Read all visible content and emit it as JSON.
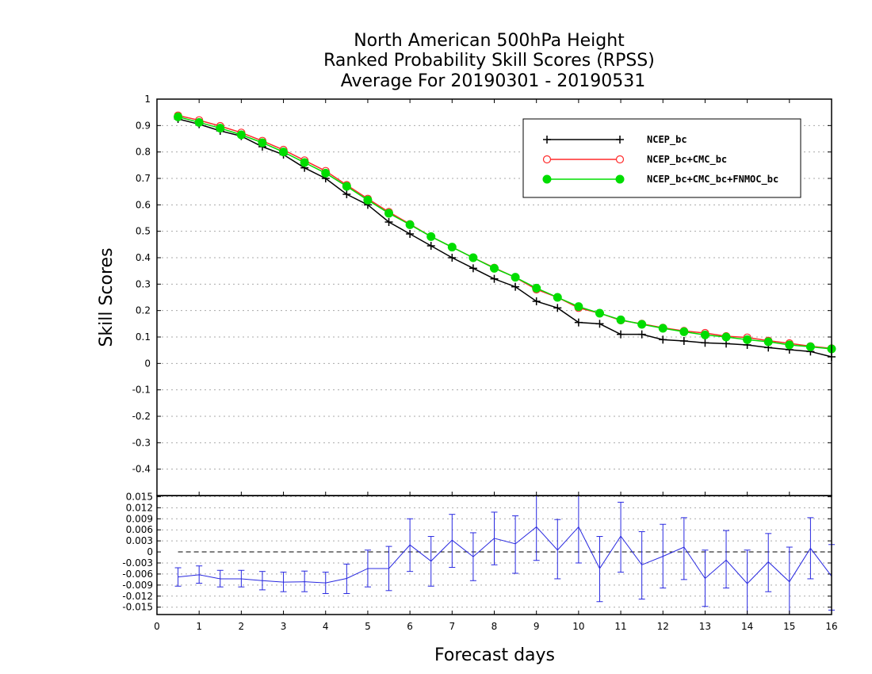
{
  "title_lines": [
    "North American 500hPa Height",
    "Ranked Probability Skill Scores (RPSS)",
    "Average For 20190301 - 20190531"
  ],
  "chart_data": [
    {
      "type": "line",
      "title": "North American 500hPa Height Ranked Probability Skill Scores (RPSS) Average For 20190301 - 20190531",
      "xlabel": "Forecast days",
      "ylabel": "Skill Scores",
      "xlim": [
        0,
        16
      ],
      "ylim": [
        -0.5,
        1
      ],
      "x_ticks": [
        "0",
        "1",
        "2",
        "3",
        "4",
        "5",
        "6",
        "7",
        "8",
        "9",
        "10",
        "11",
        "12",
        "13",
        "14",
        "15",
        "16"
      ],
      "y_ticks": [
        "1",
        "0.9",
        "0.8",
        "0.7",
        "0.6",
        "0.5",
        "0.4",
        "0.3",
        "0.2",
        "0.1",
        "0",
        "-0.1",
        "-0.2",
        "-0.3",
        "-0.4"
      ],
      "grid": true,
      "legend_position": "top-right",
      "x": [
        0.5,
        1,
        1.5,
        2,
        2.5,
        3,
        3.5,
        4,
        4.5,
        5,
        5.5,
        6,
        6.5,
        7,
        7.5,
        8,
        8.5,
        9,
        9.5,
        10,
        10.5,
        11,
        11.5,
        12,
        12.5,
        13,
        13.5,
        14,
        14.5,
        15,
        15.5,
        16
      ],
      "series": [
        {
          "name": "NCEP_bc",
          "color": "#000000",
          "marker": "plus",
          "values": [
            0.925,
            0.905,
            0.88,
            0.86,
            0.82,
            0.79,
            0.74,
            0.7,
            0.64,
            0.6,
            0.535,
            0.49,
            0.445,
            0.4,
            0.36,
            0.32,
            0.29,
            0.235,
            0.21,
            0.155,
            0.15,
            0.11,
            0.11,
            0.09,
            0.085,
            0.078,
            0.075,
            0.07,
            0.06,
            0.052,
            0.045,
            0.025
          ]
        },
        {
          "name": "NCEP_bc+CMC_bc",
          "color": "#ff2a2a",
          "marker": "open-circle",
          "values": [
            0.938,
            0.92,
            0.898,
            0.873,
            0.842,
            0.808,
            0.768,
            0.728,
            0.675,
            0.623,
            0.573,
            0.527,
            0.48,
            0.44,
            0.4,
            0.362,
            0.325,
            0.28,
            0.25,
            0.21,
            0.19,
            0.163,
            0.15,
            0.135,
            0.123,
            0.115,
            0.103,
            0.098,
            0.086,
            0.076,
            0.065,
            0.057
          ]
        },
        {
          "name": "NCEP_bc+CMC_bc+FNMOC_bc",
          "color": "#00dd00",
          "marker": "filled-circle",
          "values": [
            0.933,
            0.912,
            0.89,
            0.865,
            0.835,
            0.8,
            0.76,
            0.72,
            0.67,
            0.618,
            0.568,
            0.525,
            0.48,
            0.44,
            0.4,
            0.36,
            0.326,
            0.285,
            0.25,
            0.215,
            0.19,
            0.165,
            0.148,
            0.133,
            0.12,
            0.108,
            0.1,
            0.09,
            0.082,
            0.07,
            0.063,
            0.055
          ]
        }
      ]
    },
    {
      "type": "line",
      "xlim": [
        0,
        16
      ],
      "ylim": [
        -0.017,
        0.0153
      ],
      "y_ticks": [
        "0.015",
        "0.012",
        "0.009",
        "0.006",
        "0.003",
        "0",
        "-0.003",
        "-0.006",
        "-0.009",
        "-0.012",
        "-0.015"
      ],
      "grid": true,
      "x": [
        0.5,
        1,
        1.5,
        2,
        2.5,
        3,
        3.5,
        4,
        4.5,
        5,
        5.5,
        6,
        6.5,
        7,
        7.5,
        8,
        8.5,
        9,
        9.5,
        10,
        10.5,
        11,
        11.5,
        12,
        12.5,
        13,
        13.5,
        14,
        14.5,
        15,
        15.5,
        16
      ],
      "series": [
        {
          "name": "",
          "color": "#2828e0",
          "values": [
            -0.0068,
            -0.0062,
            -0.0073,
            -0.0073,
            -0.0078,
            -0.0082,
            -0.0081,
            -0.0084,
            -0.0072,
            -0.0045,
            -0.0045,
            0.0019,
            -0.0025,
            0.0032,
            -0.0013,
            0.0037,
            0.0022,
            0.0068,
            0.0005,
            0.0068,
            -0.0045,
            0.0043,
            -0.0035,
            -0.0012,
            0.0013,
            -0.0072,
            -0.0022,
            -0.0086,
            -0.0027,
            -0.0081,
            0.001,
            -0.0066
          ],
          "err_low": [
            -0.0093,
            -0.0085,
            -0.0095,
            -0.0095,
            -0.0103,
            -0.0108,
            -0.0108,
            -0.0113,
            -0.0113,
            -0.0095,
            -0.0105,
            -0.0053,
            -0.0093,
            -0.0042,
            -0.0078,
            -0.0035,
            -0.0058,
            -0.0023,
            -0.0073,
            -0.003,
            -0.0135,
            -0.0055,
            -0.0128,
            -0.0098,
            -0.0075,
            -0.0148,
            -0.0098,
            -0.0178,
            -0.0108,
            -0.0175,
            -0.0073,
            -0.0158
          ],
          "err_high": [
            -0.0043,
            -0.0038,
            -0.005,
            -0.005,
            -0.0053,
            -0.0055,
            -0.0052,
            -0.0055,
            -0.0033,
            0.0005,
            0.0015,
            0.009,
            0.0042,
            0.0102,
            0.0052,
            0.0108,
            0.0098,
            0.0158,
            0.0088,
            0.0162,
            0.0042,
            0.0135,
            0.0055,
            0.0075,
            0.0093,
            0.0005,
            0.0058,
            0.0005,
            0.005,
            0.0013,
            0.0093,
            0.002
          ]
        }
      ]
    }
  ]
}
